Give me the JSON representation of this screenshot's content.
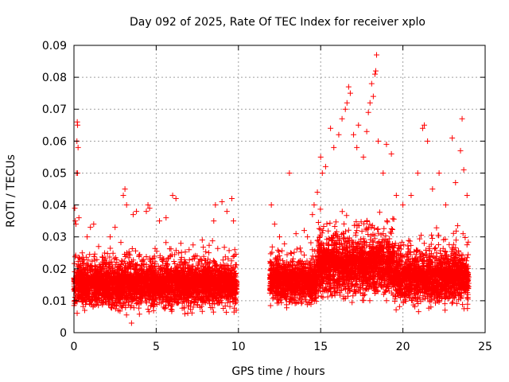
{
  "chart_data": {
    "type": "scatter",
    "title": "Day 092 of 2025, Rate Of TEC Index for receiver xplo",
    "xlabel": "GPS time / hours",
    "ylabel": "ROTI / TECUs",
    "xlim": [
      0,
      25
    ],
    "ylim": [
      0,
      0.09
    ],
    "xticks": [
      "0",
      "5",
      "10",
      "15",
      "20",
      "25"
    ],
    "yticks": [
      "0",
      "0.01",
      "0.02",
      "0.03",
      "0.04",
      "0.05",
      "0.06",
      "0.07",
      "0.08",
      "0.09"
    ],
    "grid": true,
    "marker": "+",
    "series": [
      {
        "color": "#ff0000",
        "points": [
          [
            0.05,
            0.039
          ],
          [
            0.08,
            0.035
          ],
          [
            0.12,
            0.034
          ],
          [
            0.2,
            0.066
          ],
          [
            0.22,
            0.065
          ],
          [
            0.18,
            0.06
          ],
          [
            0.25,
            0.058
          ],
          [
            0.15,
            0.05
          ],
          [
            0.22,
            0.05
          ],
          [
            0.3,
            0.036
          ],
          [
            0.5,
            0.025
          ],
          [
            0.8,
            0.03
          ],
          [
            1.0,
            0.033
          ],
          [
            1.2,
            0.034
          ],
          [
            1.5,
            0.027
          ],
          [
            2.2,
            0.03
          ],
          [
            2.5,
            0.033
          ],
          [
            3.0,
            0.043
          ],
          [
            3.1,
            0.045
          ],
          [
            3.2,
            0.04
          ],
          [
            3.6,
            0.037
          ],
          [
            3.8,
            0.038
          ],
          [
            3.5,
            0.003
          ],
          [
            4.4,
            0.038
          ],
          [
            4.5,
            0.04
          ],
          [
            4.6,
            0.039
          ],
          [
            5.2,
            0.035
          ],
          [
            5.6,
            0.036
          ],
          [
            6.0,
            0.043
          ],
          [
            6.2,
            0.042
          ],
          [
            6.5,
            0.028
          ],
          [
            7.0,
            0.026
          ],
          [
            7.8,
            0.029
          ],
          [
            8.5,
            0.035
          ],
          [
            8.6,
            0.04
          ],
          [
            9.0,
            0.041
          ],
          [
            9.3,
            0.038
          ],
          [
            9.6,
            0.042
          ],
          [
            9.7,
            0.035
          ],
          [
            12.0,
            0.04
          ],
          [
            12.2,
            0.034
          ],
          [
            12.5,
            0.03
          ],
          [
            13.1,
            0.05
          ],
          [
            13.5,
            0.031
          ],
          [
            14.0,
            0.032
          ],
          [
            14.2,
            0.03
          ],
          [
            14.5,
            0.037
          ],
          [
            14.6,
            0.04
          ],
          [
            14.8,
            0.044
          ],
          [
            15.0,
            0.055
          ],
          [
            15.1,
            0.05
          ],
          [
            15.3,
            0.052
          ],
          [
            15.6,
            0.064
          ],
          [
            15.8,
            0.058
          ],
          [
            16.1,
            0.062
          ],
          [
            16.3,
            0.067
          ],
          [
            16.5,
            0.07
          ],
          [
            16.6,
            0.072
          ],
          [
            16.7,
            0.077
          ],
          [
            16.8,
            0.075
          ],
          [
            17.0,
            0.062
          ],
          [
            17.2,
            0.058
          ],
          [
            17.3,
            0.065
          ],
          [
            17.6,
            0.055
          ],
          [
            17.8,
            0.063
          ],
          [
            17.9,
            0.069
          ],
          [
            18.0,
            0.072
          ],
          [
            18.1,
            0.078
          ],
          [
            18.2,
            0.074
          ],
          [
            18.3,
            0.081
          ],
          [
            18.35,
            0.082
          ],
          [
            18.4,
            0.087
          ],
          [
            18.5,
            0.06
          ],
          [
            18.8,
            0.05
          ],
          [
            19.0,
            0.059
          ],
          [
            19.3,
            0.056
          ],
          [
            19.6,
            0.043
          ],
          [
            20.0,
            0.04
          ],
          [
            20.5,
            0.043
          ],
          [
            20.9,
            0.05
          ],
          [
            21.2,
            0.064
          ],
          [
            21.3,
            0.065
          ],
          [
            21.5,
            0.06
          ],
          [
            21.8,
            0.045
          ],
          [
            22.2,
            0.05
          ],
          [
            22.6,
            0.04
          ],
          [
            23.0,
            0.061
          ],
          [
            23.2,
            0.047
          ],
          [
            23.5,
            0.057
          ],
          [
            23.6,
            0.067
          ],
          [
            23.7,
            0.051
          ],
          [
            23.9,
            0.043
          ]
        ],
        "dense_bands": [
          {
            "x": [
              0.0,
              9.9
            ],
            "y": [
              0.005,
              0.03
            ],
            "typical": 0.016
          },
          {
            "x": [
              11.9,
              14.8
            ],
            "y": [
              0.007,
              0.03
            ],
            "typical": 0.017
          },
          {
            "x": [
              14.8,
              19.5
            ],
            "y": [
              0.008,
              0.042
            ],
            "typical": 0.022
          },
          {
            "x": [
              19.5,
              24.0
            ],
            "y": [
              0.006,
              0.035
            ],
            "typical": 0.018
          }
        ]
      }
    ]
  }
}
